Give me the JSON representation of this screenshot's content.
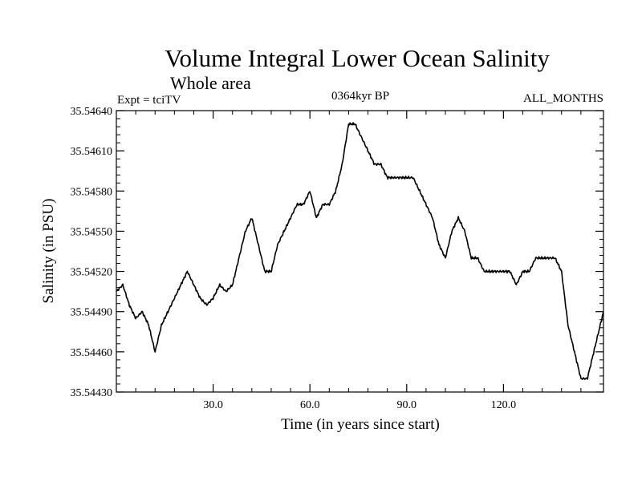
{
  "chart_data": {
    "type": "line",
    "title": "Volume Integral Lower Ocean Salinity",
    "subtitle": "Whole area",
    "experiment": "Expt = tciTV",
    "period": "0364kyr BP",
    "months": "ALL_MONTHS",
    "xlabel": "Time (in years since start)",
    "ylabel": "Salinity (in PSU)",
    "xlim": [
      0,
      151
    ],
    "ylim": [
      35.5443,
      35.5464
    ],
    "x_ticks": [
      {
        "value": 30,
        "label": "30.0"
      },
      {
        "value": 60,
        "label": "60.0"
      },
      {
        "value": 90,
        "label": "90.0"
      },
      {
        "value": 120,
        "label": "120.0"
      }
    ],
    "y_ticks": [
      {
        "value": 35.5443,
        "label": "35.54430"
      },
      {
        "value": 35.5446,
        "label": "35.54460"
      },
      {
        "value": 35.5449,
        "label": "35.54490"
      },
      {
        "value": 35.5452,
        "label": "35.54520"
      },
      {
        "value": 35.5455,
        "label": "35.54550"
      },
      {
        "value": 35.5458,
        "label": "35.54580"
      },
      {
        "value": 35.5461,
        "label": "35.54610"
      },
      {
        "value": 35.5464,
        "label": "35.54640"
      }
    ],
    "series": [
      {
        "name": "salinity",
        "color": "#000000",
        "x": [
          0,
          2,
          4,
          6,
          8,
          10,
          12,
          14,
          16,
          18,
          20,
          22,
          24,
          26,
          28,
          30,
          32,
          34,
          36,
          38,
          40,
          42,
          44,
          46,
          48,
          50,
          52,
          54,
          56,
          58,
          60,
          62,
          64,
          66,
          68,
          70,
          72,
          74,
          76,
          78,
          80,
          82,
          84,
          86,
          88,
          90,
          92,
          94,
          96,
          98,
          100,
          102,
          104,
          106,
          108,
          110,
          112,
          114,
          116,
          118,
          120,
          122,
          124,
          126,
          128,
          130,
          132,
          134,
          136,
          138,
          140,
          142,
          144,
          146,
          148,
          150,
          151
        ],
        "values": [
          35.54505,
          35.5451,
          35.54495,
          35.54485,
          35.5449,
          35.5448,
          35.5446,
          35.5448,
          35.5449,
          35.545,
          35.5451,
          35.5452,
          35.5451,
          35.545,
          35.54495,
          35.545,
          35.5451,
          35.54505,
          35.5451,
          35.5453,
          35.5455,
          35.5456,
          35.5454,
          35.5452,
          35.5452,
          35.5454,
          35.5455,
          35.5456,
          35.5457,
          35.5457,
          35.5458,
          35.5456,
          35.5457,
          35.5457,
          35.5458,
          35.546,
          35.5463,
          35.5463,
          35.5462,
          35.5461,
          35.546,
          35.546,
          35.5459,
          35.5459,
          35.5459,
          35.5459,
          35.5459,
          35.5458,
          35.5457,
          35.5456,
          35.5454,
          35.5453,
          35.5455,
          35.5456,
          35.5455,
          35.5453,
          35.5453,
          35.5452,
          35.5452,
          35.5452,
          35.5452,
          35.5452,
          35.5451,
          35.5452,
          35.5452,
          35.5453,
          35.5453,
          35.5453,
          35.5453,
          35.5452,
          35.5448,
          35.5446,
          35.5444,
          35.5444,
          35.5446,
          35.5448,
          35.5449
        ]
      }
    ]
  }
}
